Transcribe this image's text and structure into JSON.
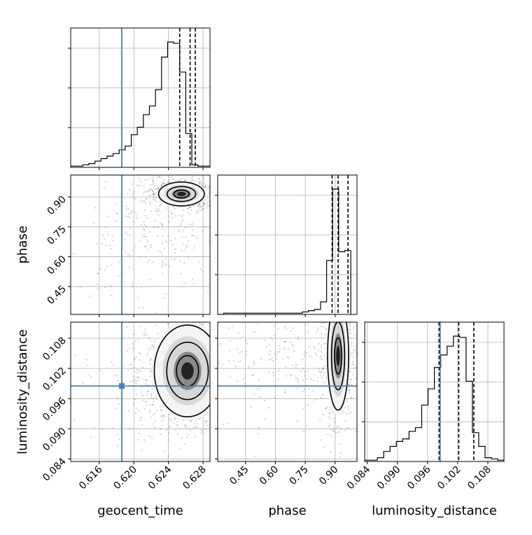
{
  "chart_data": {
    "type": "corner",
    "parameters": [
      "geocent_time",
      "phase",
      "luminosity_distance"
    ],
    "truths": {
      "geocent_time": 0.6186,
      "phase": null,
      "luminosity_distance": 0.0985
    },
    "axes": {
      "geocent_time": {
        "range": [
          0.6127,
          0.6288
        ],
        "ticks": [
          0.616,
          0.62,
          0.624,
          0.628
        ],
        "tick_labels": [
          "0.616",
          "0.620",
          "0.624",
          "0.628"
        ]
      },
      "phase": {
        "range": [
          0.31,
          1.01
        ],
        "ticks": [
          0.45,
          0.6,
          0.75,
          0.9
        ],
        "tick_labels": [
          "0.45",
          "0.60",
          "0.75",
          "0.90"
        ]
      },
      "luminosity_distance": {
        "range": [
          0.0835,
          0.1112
        ],
        "ticks": [
          0.084,
          0.09,
          0.096,
          0.102,
          0.108
        ],
        "tick_labels": [
          "0.084",
          "0.090",
          "0.096",
          "0.102",
          "0.108"
        ]
      }
    },
    "marginals": {
      "geocent_time": {
        "quantiles": [
          0.6253,
          0.6265,
          0.6271
        ],
        "bin_edges_start": 0.6127,
        "bin_width": 0.0007,
        "counts": [
          1,
          1,
          2,
          3,
          5,
          7,
          9,
          11,
          14,
          17,
          26,
          32,
          42,
          49,
          62,
          88,
          100,
          99,
          76,
          27,
          2,
          1,
          1
        ]
      },
      "phase": {
        "quantiles": [
          0.885,
          0.915,
          0.965
        ],
        "bin_edges_start": 0.31,
        "bin_width": 0.0304,
        "counts": [
          0,
          1,
          1,
          1,
          1,
          1,
          1,
          1,
          1,
          1,
          1,
          1,
          1,
          1,
          2,
          3,
          4,
          10,
          43,
          100,
          50,
          51
        ]
      },
      "luminosity_distance": {
        "quantiles": [
          0.0983,
          0.1022,
          0.1052
        ],
        "bin_edges_start": 0.0835,
        "bin_width": 0.00126,
        "counts": [
          1,
          1,
          3,
          8,
          12,
          16,
          18,
          24,
          27,
          45,
          58,
          75,
          85,
          92,
          100,
          99,
          64,
          23,
          12,
          3,
          2,
          1
        ]
      }
    },
    "joint_peaks": {
      "phase_vs_geocent_time": [
        0.6255,
        0.915
      ],
      "luminosity_distance_vs_geocent_time": [
        0.6262,
        0.1015
      ],
      "luminosity_distance_vs_phase": [
        0.915,
        0.1045
      ]
    },
    "xlabels": [
      "geocent_time",
      "phase",
      "luminosity_distance"
    ],
    "ylabels": [
      "phase",
      "luminosity_distance"
    ],
    "grid": true
  }
}
